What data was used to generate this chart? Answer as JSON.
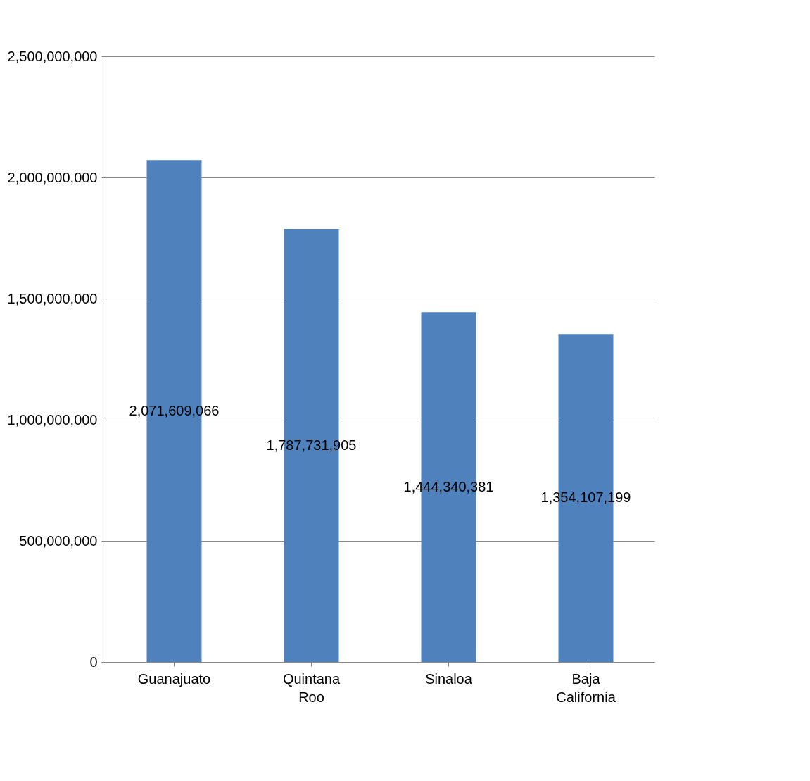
{
  "chart_data": {
    "type": "bar",
    "categories": [
      "Guanajuato",
      "Quintana Roo",
      "Sinaloa",
      "Baja California"
    ],
    "values": [
      2071609066,
      1787731905,
      1444340381,
      1354107199
    ],
    "value_labels": [
      "2,071,609,066",
      "1,787,731,905",
      "1,444,340,381",
      "1,354,107,199"
    ],
    "color": "#4f81bd",
    "ylim": [
      0,
      2500000000
    ],
    "yticks": [
      0,
      {
        "value": 500000000,
        "label": "500,000,000"
      },
      {
        "value": 1000000000,
        "label": "1,000,000,000"
      },
      {
        "value": 1500000000,
        "label": "1,500,000,000"
      },
      {
        "value": 2000000000,
        "label": "2,000,000,000"
      },
      {
        "value": 2500000000,
        "label": "2,500,000,000"
      }
    ],
    "grid": "y"
  }
}
